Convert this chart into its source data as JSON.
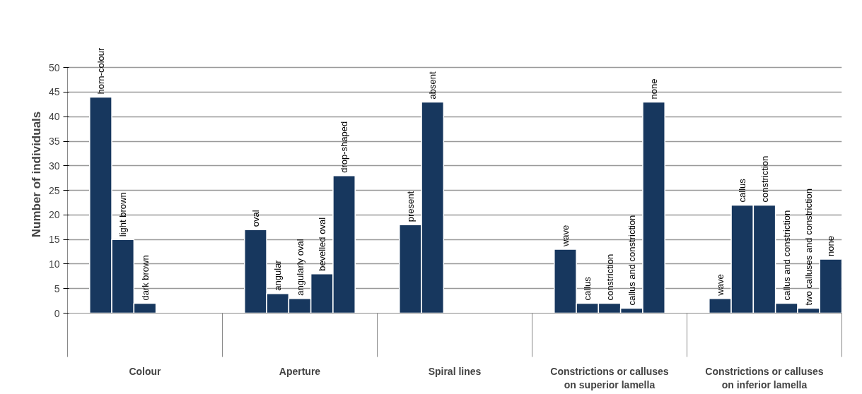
{
  "chart_data": {
    "type": "bar",
    "ylabel": "Number of individuals",
    "categories": [
      null,
      "horn-colour",
      "light brown",
      "dark brown",
      null,
      null,
      null,
      null,
      "oval",
      "angular",
      "angularly oval",
      "bevelled  oval",
      "drop-shaped",
      null,
      null,
      "present",
      "absent",
      null,
      null,
      null,
      null,
      null,
      "wave",
      "callus",
      "constriction",
      "callus and constriction",
      "none",
      null,
      null,
      "wave",
      "callus",
      "constriction",
      "callus and constriction",
      "two calluses and constriction",
      "none"
    ],
    "values": [
      null,
      44,
      15,
      2,
      null,
      null,
      null,
      null,
      17,
      4,
      3,
      8,
      28,
      null,
      null,
      18,
      43,
      null,
      null,
      null,
      null,
      null,
      13,
      2,
      2,
      1,
      43,
      null,
      null,
      3,
      22,
      22,
      2,
      1,
      11
    ],
    "color": "#17375e",
    "ylim": [
      0,
      50
    ],
    "yticks": [
      0,
      5,
      10,
      15,
      20,
      25,
      30,
      35,
      40,
      45,
      50
    ],
    "grid": "y",
    "annotations": [
      "Colour",
      "Aperture",
      "Spiral lines",
      "Constrictions or calluses\non superior lamella",
      "Constrictions or calluses\non inferior lamella"
    ]
  }
}
